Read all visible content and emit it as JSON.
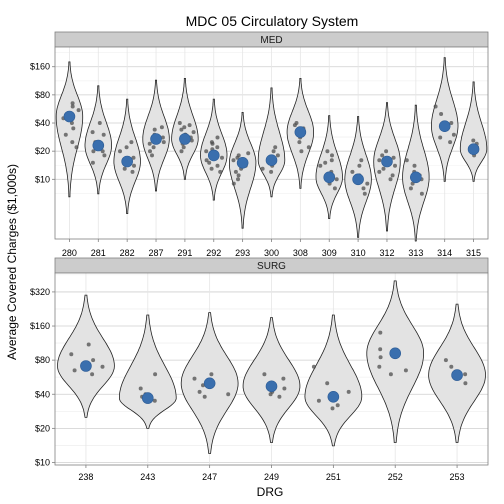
{
  "chart_data": {
    "type": "violin",
    "title": "MDC 05 Circulatory System",
    "xlabel": "DRG",
    "ylabel": "Average Covered Charges ($1,000s)",
    "y_scale": "log",
    "grid": true,
    "panels": [
      {
        "name": "MED",
        "ylim": [
          2.3,
          260
        ],
        "y_ticks": [
          10,
          20,
          40,
          80,
          160
        ],
        "y_tick_labels": [
          "$10",
          "$20",
          "$40",
          "$80",
          "$160"
        ],
        "categories": [
          "280",
          "281",
          "282",
          "287",
          "291",
          "292",
          "293",
          "300",
          "308",
          "309",
          "310",
          "312",
          "313",
          "314",
          "315"
        ],
        "groups": [
          {
            "median": 47,
            "min": 6.5,
            "max": 180,
            "points": [
              25,
              30,
              40,
              55,
              60,
              65,
              45,
              22,
              35
            ]
          },
          {
            "median": 23,
            "min": 7,
            "max": 100,
            "points": [
              18,
              20,
              25,
              30,
              32,
              40,
              20,
              15
            ]
          },
          {
            "median": 15.5,
            "min": 4.3,
            "max": 72,
            "points": [
              12,
              14,
              17,
              20,
              22,
              25,
              13
            ]
          },
          {
            "median": 27,
            "min": 7.5,
            "max": 115,
            "points": [
              18,
              22,
              25,
              28,
              30,
              34,
              36,
              20,
              24
            ]
          },
          {
            "median": 27,
            "min": 10,
            "max": 120,
            "points": [
              20,
              24,
              30,
              32,
              36,
              38,
              40,
              22,
              26,
              28,
              34,
              30
            ]
          },
          {
            "median": 18,
            "min": 6,
            "max": 72,
            "points": [
              12,
              14,
              16,
              18,
              20,
              22,
              25,
              28,
              15,
              13,
              19,
              21,
              17,
              24
            ]
          },
          {
            "median": 15,
            "min": 3,
            "max": 52,
            "points": [
              9,
              10,
              12,
              14,
              16,
              18,
              11,
              13,
              17,
              19
            ]
          },
          {
            "median": 16,
            "min": 6.5,
            "max": 95,
            "points": [
              12,
              14,
              18,
              20,
              22,
              13
            ]
          },
          {
            "median": 32,
            "min": 8,
            "max": 120,
            "points": [
              20,
              25,
              30,
              35,
              40,
              28,
              22,
              38
            ]
          },
          {
            "median": 10.5,
            "min": 3.8,
            "max": 48,
            "points": [
              9,
              10,
              12,
              14,
              16,
              18,
              20,
              8,
              11,
              15
            ]
          },
          {
            "median": 10,
            "min": 2.4,
            "max": 47,
            "points": [
              8,
              9,
              10,
              12,
              14,
              16,
              7,
              11
            ]
          },
          {
            "median": 15.5,
            "min": 2.8,
            "max": 66,
            "points": [
              10,
              12,
              14,
              16,
              18,
              20,
              11,
              13,
              17
            ]
          },
          {
            "median": 10.5,
            "min": 2.2,
            "max": 62,
            "points": [
              8,
              10,
              12,
              14,
              16,
              9,
              11,
              7
            ]
          },
          {
            "median": 37,
            "min": 9.5,
            "max": 200,
            "points": [
              25,
              30,
              35,
              40,
              50,
              60,
              28
            ]
          },
          {
            "median": 21,
            "min": 9.5,
            "max": 110,
            "points": [
              18,
              20,
              22,
              24,
              26
            ]
          }
        ]
      },
      {
        "name": "SURG",
        "ylim": [
          9.5,
          470
        ],
        "y_ticks": [
          10,
          20,
          40,
          80,
          160,
          320
        ],
        "y_tick_labels": [
          "$10",
          "$20",
          "$40",
          "$80",
          "$160",
          "$320"
        ],
        "categories": [
          "238",
          "243",
          "247",
          "249",
          "251",
          "252",
          "253"
        ],
        "groups": [
          {
            "median": 71,
            "min": 25,
            "max": 300,
            "points": [
              60,
              70,
              80,
              90,
              110,
              65
            ]
          },
          {
            "median": 37,
            "min": 20,
            "max": 200,
            "points": [
              35,
              40,
              45,
              60,
              38
            ]
          },
          {
            "median": 50,
            "min": 12,
            "max": 210,
            "points": [
              38,
              42,
              48,
              55,
              60,
              40
            ]
          },
          {
            "median": 47,
            "min": 15,
            "max": 190,
            "points": [
              38,
              42,
              45,
              55,
              60,
              40
            ]
          },
          {
            "median": 38,
            "min": 14,
            "max": 200,
            "points": [
              30,
              35,
              42,
              50,
              70,
              32
            ]
          },
          {
            "median": 92,
            "min": 15,
            "max": 400,
            "points": [
              60,
              70,
              85,
              100,
              140,
              65
            ]
          },
          {
            "median": 59,
            "min": 15,
            "max": 250,
            "points": [
              50,
              60,
              70,
              80,
              55
            ]
          }
        ]
      }
    ]
  }
}
